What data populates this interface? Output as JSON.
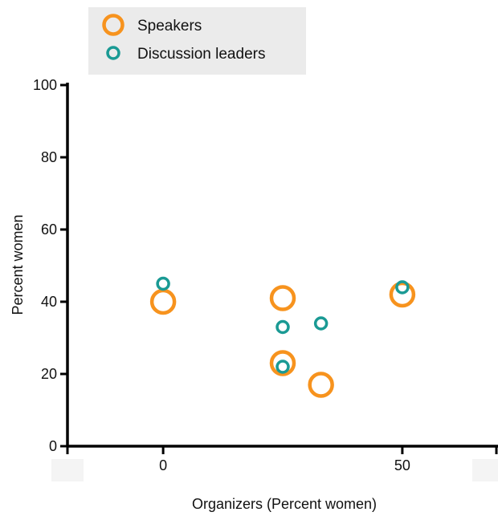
{
  "chart_data": {
    "type": "scatter",
    "title": "",
    "xlabel": "Organizers (Percent women)",
    "ylabel": "Percent women",
    "xlim": [
      -20,
      70
    ],
    "ylim": [
      0,
      100
    ],
    "x_ticks": [
      0,
      50
    ],
    "y_ticks": [
      0,
      20,
      40,
      60,
      80,
      100
    ],
    "grid": false,
    "legend_position": "top-left",
    "series": [
      {
        "name": "Speakers",
        "color": "#F7931E",
        "marker": "hollow-circle-large",
        "points": [
          {
            "x": 0,
            "y": 40
          },
          {
            "x": 25,
            "y": 41
          },
          {
            "x": 25,
            "y": 23
          },
          {
            "x": 33,
            "y": 17
          },
          {
            "x": 50,
            "y": 42
          }
        ]
      },
      {
        "name": "Discussion leaders",
        "color": "#1A9A94",
        "marker": "hollow-circle-small",
        "points": [
          {
            "x": 0,
            "y": 45
          },
          {
            "x": 25,
            "y": 33
          },
          {
            "x": 33,
            "y": 34
          },
          {
            "x": 25,
            "y": 22
          },
          {
            "x": 50,
            "y": 44
          }
        ]
      }
    ]
  }
}
